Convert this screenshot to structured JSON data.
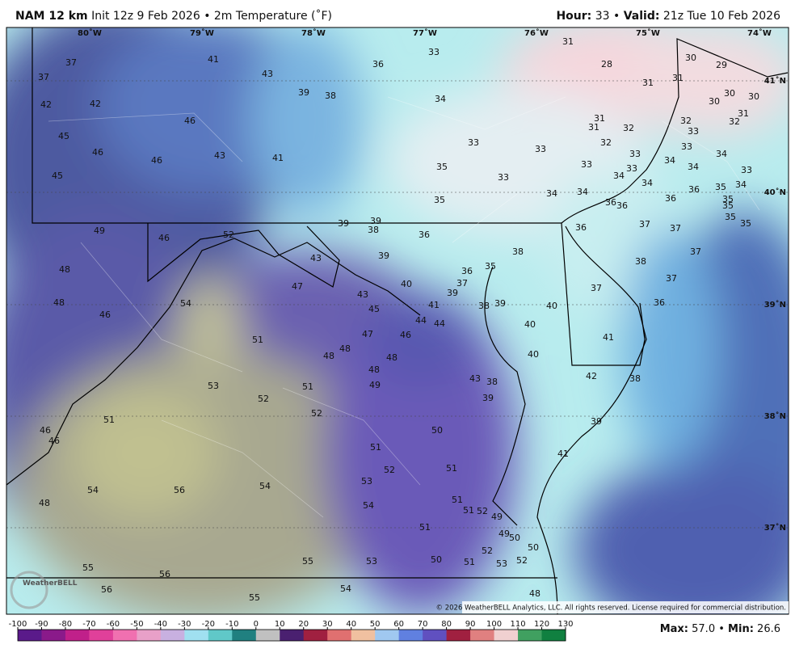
{
  "header": {
    "model": "NAM 12 km",
    "init": "Init 12z 9 Feb 2026 • 2m Temperature (˚F)",
    "hour_label": "Hour:",
    "hour": 33,
    "sep": "•",
    "valid_label": "Valid:",
    "valid": "21z Tue 10 Feb 2026"
  },
  "map": {
    "lon_labels": [
      "80˚W",
      "79˚W",
      "78˚W",
      "77˚W",
      "76˚W",
      "75˚W",
      "74˚W"
    ],
    "lat_labels": [
      "41˚N",
      "40˚N",
      "39˚N",
      "38˚N",
      "37˚N"
    ],
    "stations": [
      37,
      37,
      42,
      42,
      45,
      46,
      45,
      41,
      43,
      39,
      38,
      46,
      46,
      43,
      41,
      36,
      33,
      34,
      33,
      35,
      33,
      35,
      33,
      34,
      31,
      28,
      31,
      31,
      30,
      29,
      31,
      31,
      32,
      32,
      33,
      33,
      33,
      34,
      34,
      36,
      36,
      34,
      34,
      36,
      32,
      33,
      33,
      34,
      34,
      30,
      30,
      30,
      31,
      32,
      33,
      34,
      35,
      35,
      36,
      35,
      35,
      35,
      36,
      37,
      37,
      38,
      37,
      37,
      37,
      36,
      49,
      46,
      52,
      39,
      39,
      38,
      36,
      43,
      39,
      48,
      47,
      40,
      36,
      35,
      38,
      37,
      39,
      43,
      45,
      41,
      48,
      46,
      54,
      38,
      39,
      40,
      40,
      44,
      44,
      47,
      46,
      51,
      41,
      40,
      48,
      48,
      48,
      48,
      49,
      51,
      43,
      38,
      42,
      38,
      53,
      52,
      39,
      51,
      52,
      39,
      46,
      46,
      50,
      51,
      41,
      52,
      51,
      53,
      54,
      56,
      54,
      48,
      54,
      51,
      51,
      52,
      49,
      49,
      50,
      51,
      50,
      52,
      55,
      56,
      55,
      53,
      50,
      51,
      53,
      52,
      56,
      55,
      54,
      48
    ],
    "copyright": "© 2026 WeatherBELL Analytics, LLC. All rights reserved. License required for commercial distribution.",
    "logo": "WeatherBELL"
  },
  "colorbar": {
    "ticks": [
      -100,
      -90,
      -80,
      -70,
      -60,
      -50,
      -40,
      -30,
      -20,
      -10,
      0,
      10,
      20,
      30,
      40,
      50,
      60,
      70,
      80,
      90,
      100,
      110,
      120,
      130
    ],
    "colors": [
      "#5a1a8a",
      "#8a1a8a",
      "#c0208a",
      "#e0409a",
      "#f070b0",
      "#e8a0c8",
      "#c8b0e0",
      "#a0e0f0",
      "#60c8c8",
      "#208080",
      "#c0c0c0",
      "#4a2070",
      "#a02040",
      "#e07070",
      "#f0c0a0",
      "#a0c8f0",
      "#6080e0",
      "#6050c0",
      "#a02040",
      "#e08080",
      "#f0d0d0",
      "#40a060",
      "#108040"
    ]
  },
  "footer": {
    "max_label": "Max:",
    "max": {
      "value": 57,
      "label": "57.0"
    },
    "sep": "•",
    "min_label": "Min:",
    "min": 26.6
  }
}
